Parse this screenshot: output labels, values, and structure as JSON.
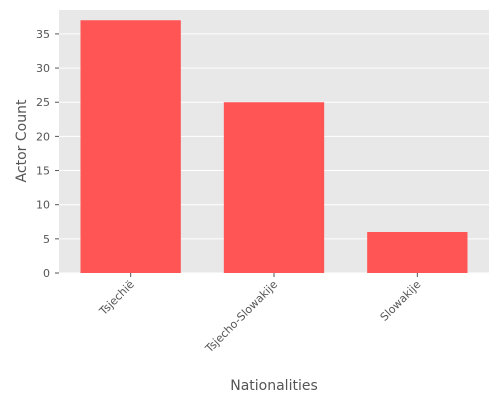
{
  "chart_data": {
    "type": "bar",
    "title": "",
    "xlabel": "Nationalities",
    "ylabel": "Actor Count",
    "categories": [
      "Tsjechië",
      "Tsjecho-Slowakije",
      "Slowakije"
    ],
    "values": [
      37,
      25,
      6
    ],
    "ylim": [
      0,
      38.5
    ],
    "yticks": [
      0,
      5,
      10,
      15,
      20,
      25,
      30,
      35
    ],
    "grid": true,
    "legend": "none",
    "colors": {
      "bar": "#ff5555",
      "plot_background": "#e8e8e8",
      "grid": "#ffffff",
      "text": "#555555"
    }
  }
}
